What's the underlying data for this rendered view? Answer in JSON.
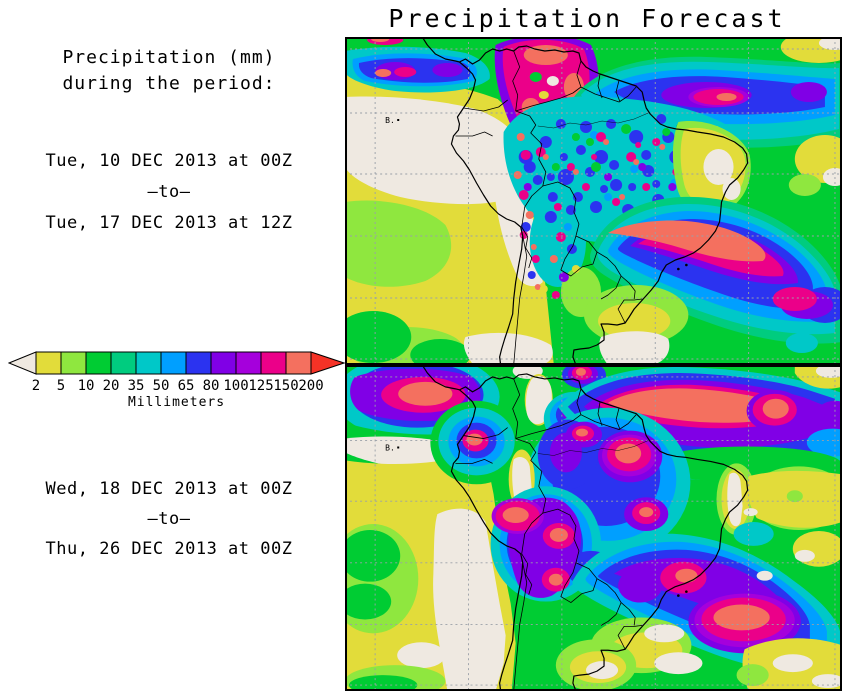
{
  "title": "Precipitation Forecast",
  "subtitle_lines": [
    "Precipitation (mm)",
    "during the period:"
  ],
  "panels": [
    {
      "name": "week-1",
      "start": "Tue, 10 DEC 2013 at 00Z",
      "separator": "—to—",
      "end": "Tue, 17 DEC 2013 at 12Z"
    },
    {
      "name": "week-2",
      "start": "Wed, 18 DEC 2013 at 00Z",
      "separator": "—to—",
      "end": "Thu, 26 DEC 2013 at 00Z"
    }
  ],
  "legend": {
    "unit_label": "Millimeters",
    "tick_values": [
      "2",
      "5",
      "10",
      "20",
      "35",
      "50",
      "65",
      "80",
      "100",
      "125",
      "150",
      "200"
    ],
    "colors": [
      "#E2DC3A",
      "#8FE73F",
      "#00CC33",
      "#00CC7F",
      "#00C8C8",
      "#009FFF",
      "#2B33F0",
      "#8000E6",
      "#A500DC",
      "#EB0089",
      "#F4705F"
    ],
    "below_min_color": "#EFE9E1",
    "above_max_color": "#F53226"
  },
  "map_annotations": {
    "island_label": "B."
  },
  "chart_data": {
    "type": "heatmap",
    "title": "Precipitation Forecast",
    "unit": "Millimeters",
    "scale_breaks_mm": [
      2,
      5,
      10,
      20,
      35,
      50,
      65,
      80,
      100,
      125,
      150,
      200
    ],
    "region": "South America and adjacent Pacific / Atlantic oceans",
    "panels": [
      {
        "period": "Tue, 10 DEC 2013 00Z to Tue, 17 DEC 2013 12Z",
        "summary": "Speckled 65-200+ mm over Amazon basin and Andes; >150 mm band along SE Brazil / SACZ and Atlantic ITCZ; <2-5 mm over SE Pacific and NE Brazil"
      },
      {
        "period": "Wed, 18 DEC 2013 00Z to Thu, 26 DEC 2013 00Z",
        "summary": "Broad 150-200+ mm maxima over Atlantic ITCZ, central Amazon, Peru/Bolivia and offshore SE Brazil; <2-5 mm over SE Pacific, coastal Venezuela and NE Brazil coast"
      }
    ]
  }
}
